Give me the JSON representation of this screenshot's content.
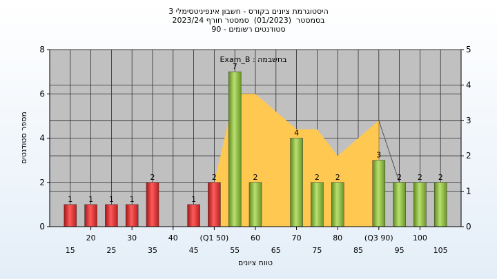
{
  "chart_data": {
    "type": "bar",
    "title_lines": [
      "היסטוגרמת ציונים בקורס - חשבון אינפיניטסימלי 3",
      "בסמסטר  (01/2023)  סמסטר חורף 2023/24",
      "סטודנטים רשומים - 90"
    ],
    "annotation": "Exam_B : בחשבמה",
    "xlabel": "טווח ציונים",
    "ylabel": "מספר סטודנטים",
    "ylim": [
      0,
      8
    ],
    "y_ticks": [
      0,
      2,
      4,
      6,
      8
    ],
    "y2lim": [
      0,
      5
    ],
    "y2_ticks": [
      0,
      1,
      2,
      3,
      4,
      5
    ],
    "x_ticks_upper": [
      "20",
      "30",
      "40",
      "(Q1 50)",
      "60",
      "70",
      "80",
      "(Q3 90)",
      "100"
    ],
    "x_ticks_lower": [
      "15",
      "25",
      "35",
      "45",
      "55",
      "65",
      "75",
      "85",
      "95",
      "105"
    ],
    "bars": [
      {
        "x": 15,
        "value": 1,
        "label": "1",
        "color": "red"
      },
      {
        "x": 20,
        "value": 1,
        "label": "1",
        "color": "red"
      },
      {
        "x": 25,
        "value": 1,
        "label": "1",
        "color": "red"
      },
      {
        "x": 30,
        "value": 1,
        "label": "1",
        "color": "red"
      },
      {
        "x": 35,
        "value": 2,
        "label": "2",
        "color": "red"
      },
      {
        "x": 45,
        "value": 1,
        "label": "1",
        "color": "red"
      },
      {
        "x": 50,
        "value": 2,
        "label": "2",
        "color": "red"
      },
      {
        "x": 55,
        "value": 7,
        "label": "7",
        "color": "green"
      },
      {
        "x": 60,
        "value": 2,
        "label": "2",
        "color": "green"
      },
      {
        "x": 70,
        "value": 4,
        "label": "4",
        "color": "green"
      },
      {
        "x": 75,
        "value": 2,
        "label": "2",
        "color": "green"
      },
      {
        "x": 80,
        "value": 2,
        "label": "2",
        "color": "green"
      },
      {
        "x": 90,
        "value": 3,
        "label": "3",
        "color": "green"
      },
      {
        "x": 95,
        "value": 2,
        "label": "2",
        "color": "green"
      },
      {
        "x": 100,
        "value": 2,
        "label": "2",
        "color": "green"
      },
      {
        "x": 105,
        "value": 2,
        "label": "2",
        "color": "green"
      }
    ],
    "area": {
      "x": [
        50,
        55,
        60,
        70,
        75,
        80,
        90
      ],
      "y": [
        2,
        6,
        6,
        4.4,
        4.4,
        3.2,
        4.8
      ]
    },
    "grid": true,
    "colors": {
      "plot_bg": "#c0c0c0",
      "area": "#ffc851",
      "red_bar": "#e53030",
      "green_bar": "#8ab83c"
    }
  }
}
